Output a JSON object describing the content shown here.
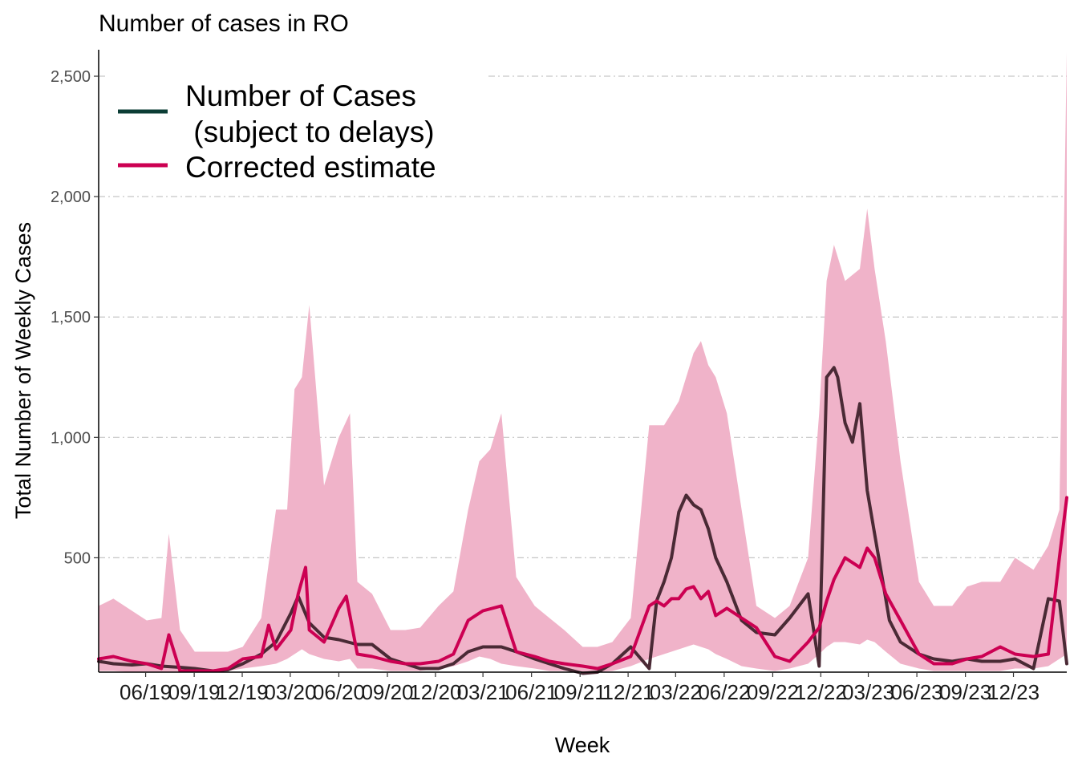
{
  "chart_data": {
    "type": "line",
    "title": "Number of cases in RO",
    "xlabel": "Week",
    "ylabel": "Total Number of Weekly Cases",
    "ylim": [
      25,
      2610
    ],
    "xlim": [
      "2019-03-04",
      "2024-03-11"
    ],
    "y_ticks": [
      500,
      1000,
      1500,
      2000,
      2500
    ],
    "y_tick_labels": [
      "500",
      "1,000",
      "1,500",
      "2,000",
      "2,500"
    ],
    "x_ticks": [
      "2019-06-01",
      "2019-09-01",
      "2019-12-01",
      "2020-03-01",
      "2020-06-01",
      "2020-09-01",
      "2020-12-01",
      "2021-03-01",
      "2021-06-01",
      "2021-09-01",
      "2021-12-01",
      "2022-03-01",
      "2022-06-01",
      "2022-09-01",
      "2022-12-01",
      "2023-03-01",
      "2023-06-01",
      "2023-09-01",
      "2023-12-01"
    ],
    "x_tick_labels": [
      "06/19",
      "09/19",
      "12/19",
      "03/20",
      "06/20",
      "09/20",
      "12/20",
      "03/21",
      "06/21",
      "09/21",
      "12/21",
      "03/22",
      "06/22",
      "09/22",
      "12/22",
      "03/23",
      "06/23",
      "09/23",
      "12/23"
    ],
    "grid": "horizontal dash-dot",
    "legend_position": "top-left",
    "colors": {
      "cases": "#0b3d35",
      "estimate": "#cc0052",
      "band": "#f0b3c9",
      "overlap": "#4a2a35"
    },
    "series": [
      {
        "name": "Number of Cases\n (subject to delays)",
        "key": "cases",
        "x": [
          "2019-03-04",
          "2019-04-01",
          "2019-05-06",
          "2019-06-03",
          "2019-07-01",
          "2019-08-05",
          "2019-09-02",
          "2019-10-07",
          "2019-11-04",
          "2019-12-02",
          "2020-01-06",
          "2020-02-03",
          "2020-03-02",
          "2020-03-16",
          "2020-04-06",
          "2020-05-04",
          "2020-06-01",
          "2020-07-06",
          "2020-08-03",
          "2020-09-07",
          "2020-10-05",
          "2020-11-02",
          "2020-12-07",
          "2021-01-04",
          "2021-02-01",
          "2021-03-01",
          "2021-04-05",
          "2021-05-03",
          "2021-06-07",
          "2021-07-05",
          "2021-08-02",
          "2021-09-06",
          "2021-10-04",
          "2021-11-01",
          "2021-12-06",
          "2022-01-10",
          "2022-01-24",
          "2022-02-07",
          "2022-02-21",
          "2022-03-07",
          "2022-03-21",
          "2022-04-04",
          "2022-04-18",
          "2022-05-02",
          "2022-05-16",
          "2022-06-06",
          "2022-07-04",
          "2022-08-01",
          "2022-09-05",
          "2022-10-03",
          "2022-11-07",
          "2022-11-28",
          "2022-12-12",
          "2022-12-26",
          "2023-01-02",
          "2023-01-16",
          "2023-01-30",
          "2023-02-13",
          "2023-02-27",
          "2023-03-13",
          "2023-03-27",
          "2023-04-10",
          "2023-05-01",
          "2023-06-05",
          "2023-07-03",
          "2023-08-07",
          "2023-09-04",
          "2023-10-02",
          "2023-11-06",
          "2023-12-04",
          "2024-01-08",
          "2024-02-05",
          "2024-02-26",
          "2024-03-11"
        ],
        "y": [
          70,
          60,
          55,
          60,
          50,
          45,
          40,
          30,
          35,
          60,
          100,
          150,
          270,
          340,
          230,
          170,
          160,
          140,
          140,
          80,
          60,
          40,
          40,
          60,
          110,
          130,
          130,
          110,
          80,
          60,
          40,
          20,
          25,
          60,
          130,
          40,
          320,
          400,
          500,
          690,
          760,
          720,
          700,
          620,
          500,
          400,
          240,
          190,
          180,
          250,
          350,
          50,
          1250,
          1290,
          1250,
          1060,
          980,
          1140,
          780,
          600,
          420,
          240,
          150,
          100,
          80,
          70,
          80,
          70,
          70,
          80,
          40,
          330,
          320,
          60
        ]
      },
      {
        "name": "Corrected estimate",
        "key": "estimate",
        "x": [
          "2019-03-04",
          "2019-04-01",
          "2019-05-06",
          "2019-06-03",
          "2019-07-01",
          "2019-07-15",
          "2019-08-05",
          "2019-09-02",
          "2019-10-07",
          "2019-11-04",
          "2019-12-02",
          "2020-01-06",
          "2020-01-20",
          "2020-02-03",
          "2020-03-02",
          "2020-03-16",
          "2020-03-30",
          "2020-04-06",
          "2020-05-04",
          "2020-06-01",
          "2020-06-15",
          "2020-07-06",
          "2020-08-03",
          "2020-09-07",
          "2020-10-05",
          "2020-11-02",
          "2020-12-07",
          "2021-01-04",
          "2021-02-01",
          "2021-03-01",
          "2021-04-05",
          "2021-05-03",
          "2021-06-07",
          "2021-07-05",
          "2021-08-02",
          "2021-09-06",
          "2021-10-04",
          "2021-11-01",
          "2021-12-06",
          "2022-01-10",
          "2022-01-24",
          "2022-02-07",
          "2022-02-21",
          "2022-03-07",
          "2022-03-21",
          "2022-04-04",
          "2022-04-18",
          "2022-05-02",
          "2022-05-16",
          "2022-06-06",
          "2022-07-04",
          "2022-08-01",
          "2022-09-05",
          "2022-10-03",
          "2022-11-07",
          "2022-11-28",
          "2022-12-12",
          "2022-12-26",
          "2023-01-16",
          "2023-02-13",
          "2023-02-27",
          "2023-03-13",
          "2023-04-03",
          "2023-05-01",
          "2023-06-05",
          "2023-07-03",
          "2023-08-07",
          "2023-09-04",
          "2023-10-02",
          "2023-11-06",
          "2023-12-04",
          "2024-01-08",
          "2024-02-05",
          "2024-02-26",
          "2024-03-11"
        ],
        "y": [
          80,
          90,
          70,
          60,
          40,
          180,
          30,
          30,
          30,
          40,
          80,
          90,
          220,
          120,
          200,
          350,
          460,
          200,
          150,
          290,
          340,
          100,
          90,
          70,
          60,
          60,
          70,
          100,
          240,
          280,
          300,
          110,
          90,
          70,
          60,
          50,
          40,
          60,
          90,
          300,
          320,
          300,
          330,
          330,
          370,
          380,
          330,
          360,
          260,
          290,
          250,
          210,
          90,
          70,
          150,
          210,
          320,
          410,
          500,
          460,
          540,
          500,
          350,
          240,
          100,
          60,
          60,
          80,
          90,
          130,
          100,
          90,
          100,
          500,
          750
        ]
      }
    ],
    "band": {
      "name": "",
      "x": [
        "2019-03-04",
        "2019-04-01",
        "2019-05-06",
        "2019-06-03",
        "2019-07-01",
        "2019-07-15",
        "2019-08-05",
        "2019-09-02",
        "2019-10-07",
        "2019-11-04",
        "2019-12-02",
        "2020-01-06",
        "2020-02-03",
        "2020-02-24",
        "2020-03-09",
        "2020-03-23",
        "2020-04-06",
        "2020-05-04",
        "2020-06-01",
        "2020-06-22",
        "2020-07-06",
        "2020-08-03",
        "2020-09-07",
        "2020-10-05",
        "2020-11-02",
        "2020-12-07",
        "2021-01-04",
        "2021-02-01",
        "2021-02-22",
        "2021-03-15",
        "2021-04-05",
        "2021-05-03",
        "2021-06-07",
        "2021-07-05",
        "2021-08-02",
        "2021-09-06",
        "2021-10-04",
        "2021-11-01",
        "2021-12-06",
        "2022-01-10",
        "2022-02-07",
        "2022-03-07",
        "2022-04-04",
        "2022-04-18",
        "2022-05-02",
        "2022-05-16",
        "2022-06-06",
        "2022-07-04",
        "2022-08-01",
        "2022-09-05",
        "2022-10-03",
        "2022-11-07",
        "2022-11-28",
        "2022-12-12",
        "2022-12-26",
        "2023-01-16",
        "2023-02-13",
        "2023-02-27",
        "2023-03-13",
        "2023-04-03",
        "2023-05-01",
        "2023-06-05",
        "2023-07-03",
        "2023-08-07",
        "2023-09-04",
        "2023-10-02",
        "2023-11-06",
        "2023-12-04",
        "2024-01-08",
        "2024-02-05",
        "2024-02-26",
        "2024-03-11"
      ],
      "lower": [
        30,
        30,
        25,
        25,
        25,
        25,
        25,
        25,
        25,
        30,
        40,
        50,
        60,
        80,
        100,
        120,
        100,
        80,
        70,
        80,
        40,
        40,
        30,
        30,
        30,
        40,
        50,
        70,
        90,
        80,
        60,
        50,
        40,
        30,
        30,
        25,
        25,
        30,
        50,
        80,
        100,
        120,
        140,
        130,
        120,
        100,
        80,
        50,
        40,
        30,
        40,
        60,
        100,
        130,
        150,
        150,
        140,
        160,
        150,
        110,
        60,
        40,
        30,
        30,
        30,
        30,
        30,
        40,
        40,
        50,
        80,
        100
      ],
      "upper": [
        300,
        330,
        280,
        240,
        250,
        600,
        200,
        110,
        110,
        110,
        130,
        250,
        700,
        700,
        1200,
        1250,
        1550,
        800,
        1000,
        1100,
        400,
        350,
        200,
        200,
        210,
        300,
        360,
        700,
        900,
        950,
        1100,
        420,
        300,
        250,
        200,
        130,
        130,
        150,
        250,
        1050,
        1050,
        1150,
        1350,
        1400,
        1300,
        1250,
        1100,
        700,
        300,
        250,
        300,
        500,
        1100,
        1650,
        1800,
        1650,
        1700,
        1950,
        1700,
        1400,
        900,
        400,
        300,
        300,
        380,
        400,
        400,
        500,
        450,
        550,
        700,
        2600
      ]
    }
  }
}
